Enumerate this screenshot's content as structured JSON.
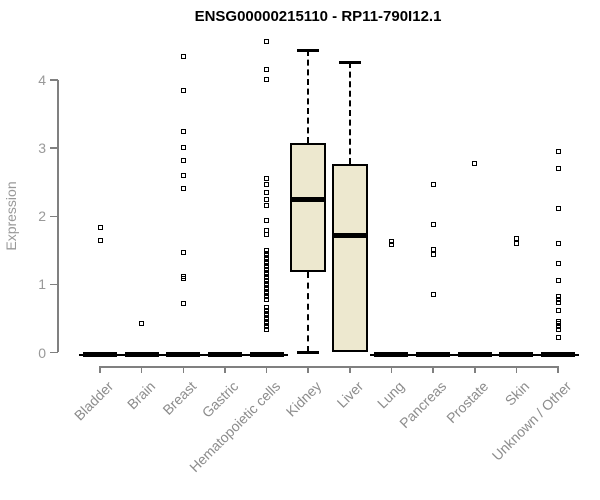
{
  "chart_data": {
    "type": "boxplot",
    "title": "ENSG00000215110 - RP11-790I12.1",
    "xlabel": "",
    "ylabel": "Expression",
    "ylim": [
      0,
      4.6
    ],
    "yticks": [
      0,
      1,
      2,
      3,
      4
    ],
    "grid": false,
    "legend": "none",
    "colors": {
      "box_fill": "#ede8cf",
      "box_stroke": "#000000",
      "axis_line": "#808080",
      "tick_label": "#999999",
      "category_label": "#8c8c8c",
      "title": "#000000"
    },
    "categories": [
      "Bladder",
      "Brain",
      "Breast",
      "Gastric",
      "Hematopoietic cells",
      "Kidney",
      "Liver",
      "Lung",
      "Pancreas",
      "Prostate",
      "Skin",
      "Unknown / Other"
    ],
    "series": [
      {
        "name": "Bladder",
        "low": 0,
        "q1": 0,
        "median": 0,
        "q3": 0,
        "high": 0,
        "outliers": [
          1.83,
          1.65
        ]
      },
      {
        "name": "Brain",
        "low": 0,
        "q1": 0,
        "median": 0,
        "q3": 0,
        "high": 0,
        "outliers": [
          0.43
        ]
      },
      {
        "name": "Breast",
        "low": 0,
        "q1": 0,
        "median": 0,
        "q3": 0,
        "high": 0,
        "outliers": [
          4.34,
          3.85,
          3.24,
          3.01,
          2.82,
          2.6,
          2.41,
          1.47,
          1.12,
          1.08,
          0.72
        ]
      },
      {
        "name": "Gastric",
        "low": 0,
        "q1": 0,
        "median": 0,
        "q3": 0,
        "high": 0,
        "outliers": []
      },
      {
        "name": "Hematopoietic cells",
        "low": 0,
        "q1": 0,
        "median": 0,
        "q3": 0,
        "high": 0,
        "outliers": [
          4.56,
          4.15,
          4.01,
          2.56,
          2.46,
          2.35,
          2.25,
          2.16,
          1.94,
          1.79,
          1.74,
          1.5,
          1.46,
          1.42,
          1.38,
          1.34,
          1.3,
          1.26,
          1.22,
          1.18,
          1.14,
          1.1,
          1.06,
          1.02,
          0.98,
          0.94,
          0.9,
          0.86,
          0.82,
          0.78,
          0.66,
          0.62,
          0.58,
          0.54,
          0.5,
          0.46,
          0.42,
          0.38,
          0.34
        ]
      },
      {
        "name": "Kidney",
        "low": 0,
        "q1": 1.18,
        "median": 2.24,
        "q3": 3.07,
        "high": 4.44,
        "outliers": []
      },
      {
        "name": "Liver",
        "low": 0,
        "q1": 0,
        "median": 1.72,
        "q3": 2.77,
        "high": 4.26,
        "outliers": []
      },
      {
        "name": "Lung",
        "low": 0,
        "q1": 0,
        "median": 0,
        "q3": 0,
        "high": 0,
        "outliers": [
          1.63,
          1.58
        ]
      },
      {
        "name": "Pancreas",
        "low": 0,
        "q1": 0,
        "median": 0,
        "q3": 0,
        "high": 0,
        "outliers": [
          2.46,
          1.88,
          1.51,
          1.44,
          0.85
        ]
      },
      {
        "name": "Prostate",
        "low": 0,
        "q1": 0,
        "median": 0,
        "q3": 0,
        "high": 0,
        "outliers": [
          2.78
        ]
      },
      {
        "name": "Skin",
        "low": 0,
        "q1": 0,
        "median": 0,
        "q3": 0,
        "high": 0,
        "outliers": [
          1.68,
          1.6
        ]
      },
      {
        "name": "Unknown / Other",
        "low": 0,
        "q1": 0,
        "median": 0,
        "q3": 0,
        "high": 0,
        "outliers": [
          2.95,
          2.7,
          2.12,
          1.6,
          1.3,
          1.06,
          0.82,
          0.78,
          0.74,
          0.62,
          0.46,
          0.42,
          0.38,
          0.34,
          0.22
        ]
      }
    ]
  }
}
